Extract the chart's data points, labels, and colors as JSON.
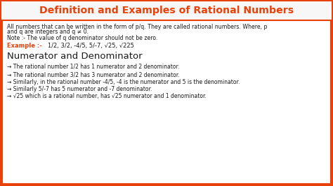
{
  "title": "Definition and Examples of Rational Numbers",
  "title_color": "#e8420a",
  "border_color": "#e8420a",
  "title_bg": "#f7f7f7",
  "bg_color": "#ffffff",
  "para1_line1": "All numbers that can be written in the form of p/q. They are called rational numbers. Where, p",
  "para1_line2": "and q are integers and q ≠ 0.",
  "note_line": "Note :- The value of q denominator should not be zero.",
  "example_label": "Example :-",
  "example_text": "   1/2, 3/2, -4/5, 5/-7, √25, √225",
  "example_color": "#e8420a",
  "section_title": "Numerator and Denominator",
  "bullets": [
    "→ The rational number 1/2 has 1 numerator and 2 denominator.",
    "→ The rational number 3/2 has 3 numerator and 2 denominator.",
    "→ Similarly, in the rational number -4/5, -4 is the numerator and 5 is the denominator.",
    "→ Similarly 5/-7 has 5 numerator and -7 denominator.",
    "→ √25 which is a rational number, has √25 numerator and 1 denominator."
  ],
  "text_color": "#1a1a1a",
  "figsize": [
    4.74,
    2.66
  ],
  "dpi": 100
}
